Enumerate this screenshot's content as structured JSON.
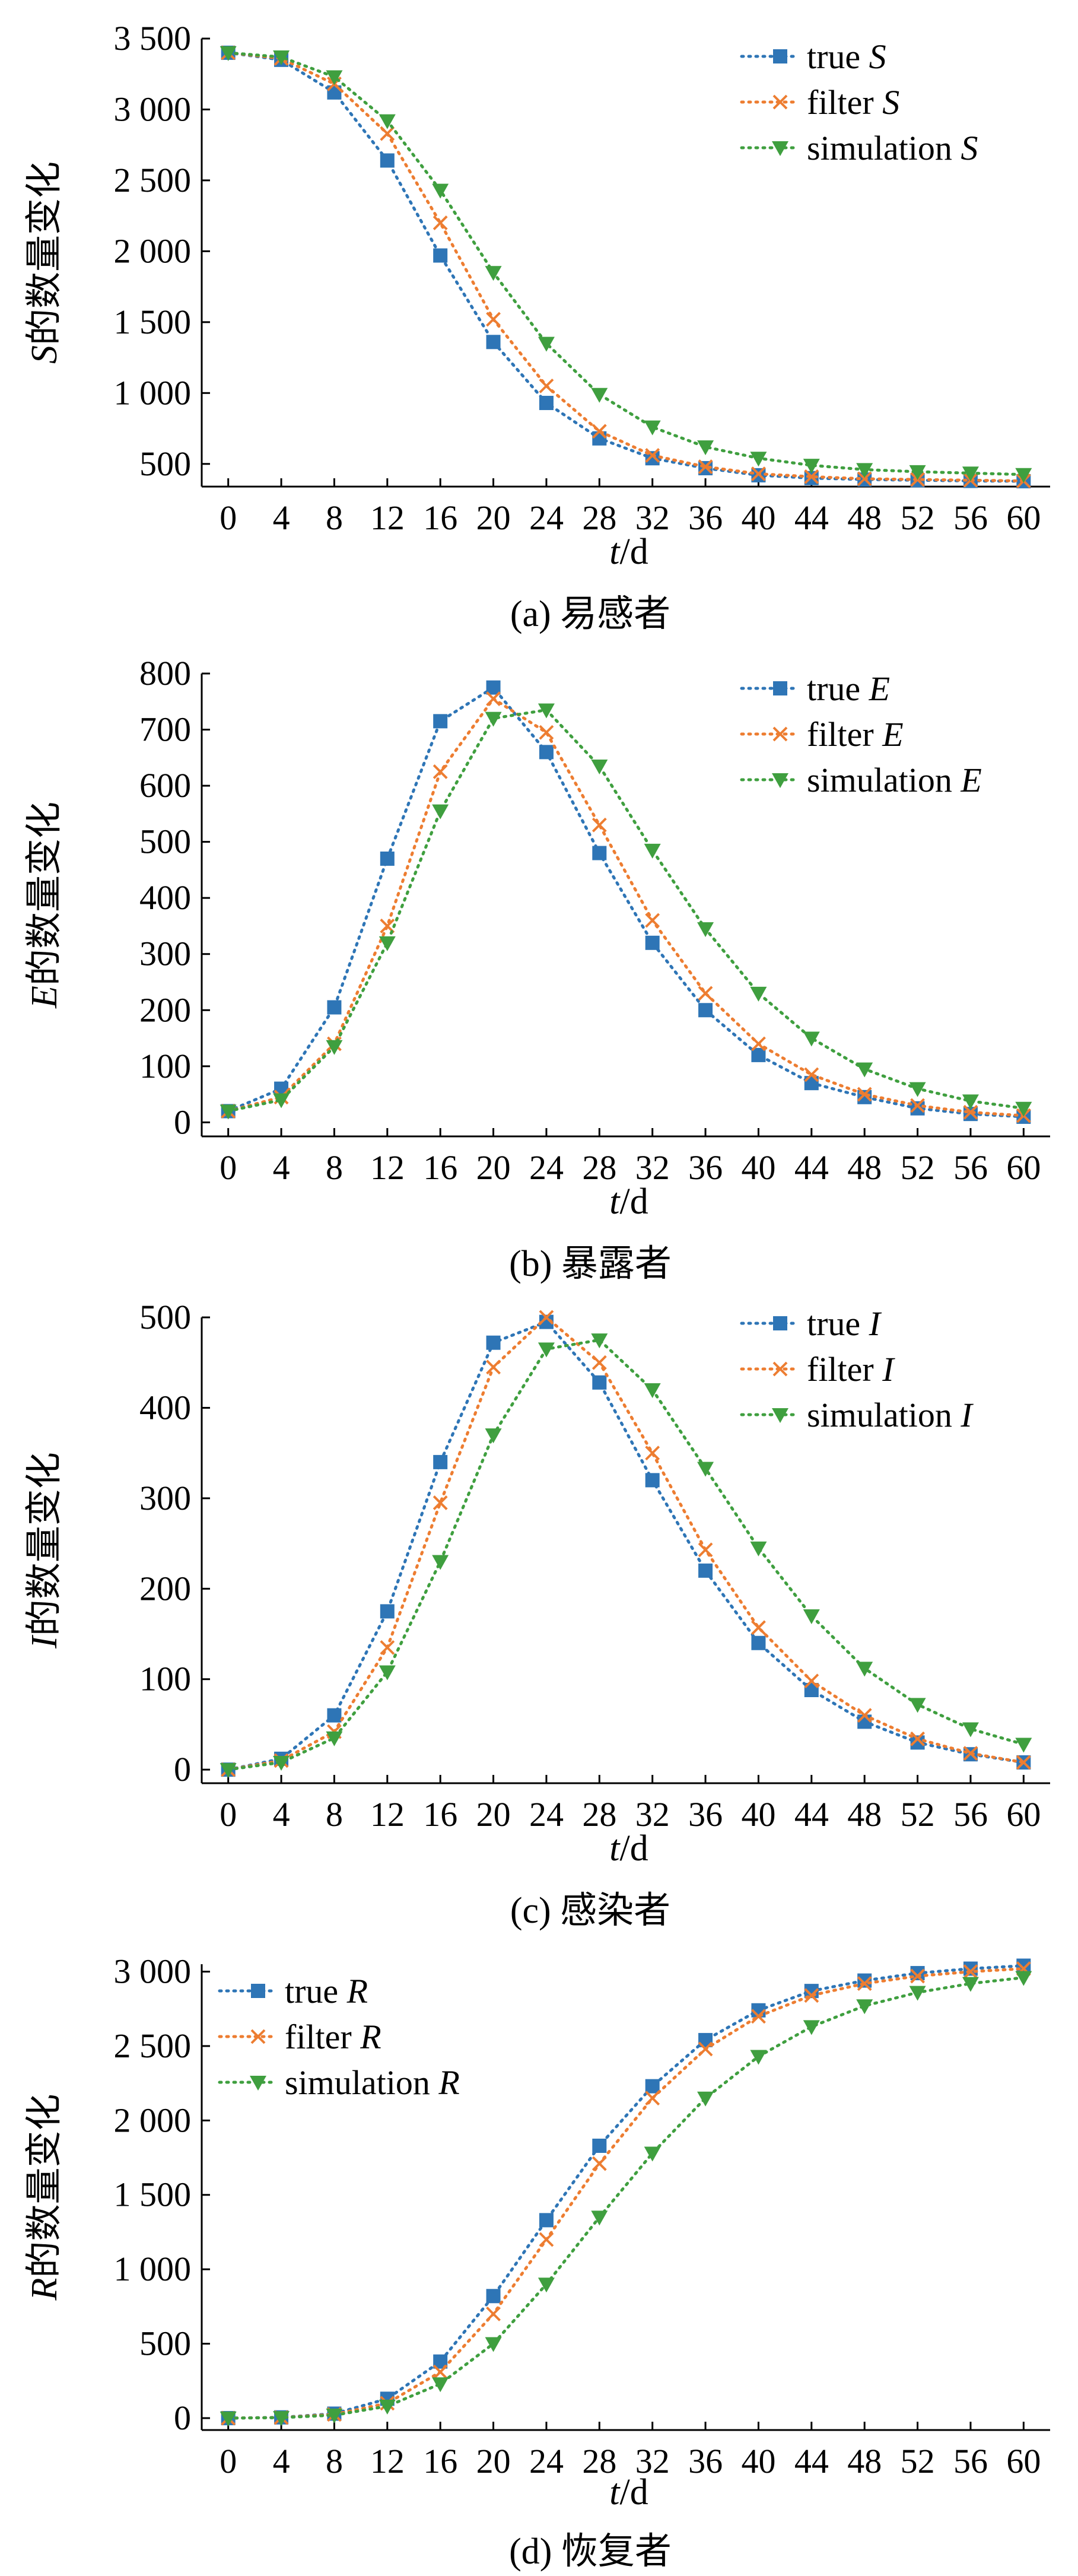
{
  "chart_data": [
    {
      "type": "line",
      "caption": "(a) 易感者",
      "ylabel_var": "S",
      "ylabel_suffix": "的数量变化",
      "xlabel_var": "t",
      "xlabel_unit": "/d",
      "x": [
        0,
        4,
        8,
        12,
        16,
        20,
        24,
        28,
        32,
        36,
        40,
        44,
        48,
        52,
        56,
        60
      ],
      "xlim": [
        -2,
        62
      ],
      "ylim": [
        340,
        3500
      ],
      "yticks": [
        500,
        1000,
        1500,
        2000,
        2500,
        3000,
        3500
      ],
      "ytick_labels": [
        "500",
        "1 000",
        "1 500",
        "2 000",
        "2 500",
        "3 000",
        "3 500"
      ],
      "legend_position": "top-right",
      "series": [
        {
          "name": "true",
          "var": "S",
          "marker": "square",
          "color": "#2e75b6",
          "values": [
            3400,
            3350,
            3120,
            2640,
            1970,
            1360,
            930,
            680,
            540,
            470,
            420,
            400,
            390,
            385,
            380,
            378
          ]
        },
        {
          "name": "filter",
          "var": "S",
          "marker": "x",
          "color": "#ed7d31",
          "values": [
            3400,
            3360,
            3180,
            2830,
            2200,
            1520,
            1050,
            730,
            560,
            480,
            430,
            410,
            395,
            390,
            385,
            380
          ]
        },
        {
          "name": "simulation",
          "var": "S",
          "marker": "triangle-down",
          "color": "#3f9f3f",
          "values": [
            3400,
            3370,
            3230,
            2920,
            2430,
            1850,
            1350,
            990,
            760,
            620,
            540,
            490,
            460,
            445,
            435,
            425
          ]
        }
      ]
    },
    {
      "type": "line",
      "caption": "(b) 暴露者",
      "ylabel_var": "E",
      "ylabel_suffix": "的数量变化",
      "xlabel_var": "t",
      "xlabel_unit": "/d",
      "x": [
        0,
        4,
        8,
        12,
        16,
        20,
        24,
        28,
        32,
        36,
        40,
        44,
        48,
        52,
        56,
        60
      ],
      "xlim": [
        -2,
        62
      ],
      "ylim": [
        -25,
        800
      ],
      "yticks": [
        0,
        100,
        200,
        300,
        400,
        500,
        600,
        700,
        800
      ],
      "ytick_labels": [
        "0",
        "100",
        "200",
        "300",
        "400",
        "500",
        "600",
        "700",
        "800"
      ],
      "legend_position": "top-right",
      "series": [
        {
          "name": "true",
          "var": "E",
          "marker": "square",
          "color": "#2e75b6",
          "values": [
            20,
            60,
            205,
            470,
            715,
            775,
            660,
            480,
            320,
            200,
            120,
            70,
            45,
            25,
            15,
            10
          ]
        },
        {
          "name": "filter",
          "var": "E",
          "marker": "x",
          "color": "#ed7d31",
          "values": [
            20,
            45,
            140,
            350,
            625,
            755,
            695,
            530,
            360,
            230,
            140,
            85,
            50,
            30,
            18,
            12
          ]
        },
        {
          "name": "simulation",
          "var": "E",
          "marker": "triangle-down",
          "color": "#3f9f3f",
          "values": [
            20,
            40,
            135,
            320,
            555,
            720,
            735,
            635,
            485,
            345,
            230,
            150,
            95,
            60,
            38,
            25
          ]
        }
      ]
    },
    {
      "type": "line",
      "caption": "(c) 感染者",
      "ylabel_var": "I",
      "ylabel_suffix": "的数量变化",
      "xlabel_var": "t",
      "xlabel_unit": "/d",
      "x": [
        0,
        4,
        8,
        12,
        16,
        20,
        24,
        28,
        32,
        36,
        40,
        44,
        48,
        52,
        56,
        60
      ],
      "xlim": [
        -2,
        62
      ],
      "ylim": [
        -15,
        500
      ],
      "yticks": [
        0,
        100,
        200,
        300,
        400,
        500
      ],
      "ytick_labels": [
        "0",
        "100",
        "200",
        "300",
        "400",
        "500"
      ],
      "legend_position": "top-right",
      "series": [
        {
          "name": "true",
          "var": "I",
          "marker": "square",
          "color": "#2e75b6",
          "values": [
            0,
            12,
            60,
            175,
            340,
            472,
            495,
            428,
            320,
            220,
            140,
            88,
            53,
            30,
            17,
            8
          ]
        },
        {
          "name": "filter",
          "var": "I",
          "marker": "x",
          "color": "#ed7d31",
          "values": [
            0,
            10,
            42,
            135,
            295,
            445,
            500,
            450,
            350,
            243,
            157,
            98,
            60,
            34,
            18,
            8
          ]
        },
        {
          "name": "simulation",
          "var": "I",
          "marker": "triangle-down",
          "color": "#3f9f3f",
          "values": [
            0,
            8,
            35,
            108,
            230,
            370,
            465,
            475,
            420,
            333,
            245,
            170,
            112,
            72,
            45,
            28
          ]
        }
      ]
    },
    {
      "type": "line",
      "caption": "(d) 恢复者",
      "ylabel_var": "R",
      "ylabel_suffix": "的数量变化",
      "xlabel_var": "t",
      "xlabel_unit": "/d",
      "x": [
        0,
        4,
        8,
        12,
        16,
        20,
        24,
        28,
        32,
        36,
        40,
        44,
        48,
        52,
        56,
        60
      ],
      "xlim": [
        -2,
        62
      ],
      "ylim": [
        -80,
        3050
      ],
      "yticks": [
        0,
        500,
        1000,
        1500,
        2000,
        2500,
        3000
      ],
      "ytick_labels": [
        "0",
        "500",
        "1 000",
        "1 500",
        "2 000",
        "2 500",
        "3 000"
      ],
      "legend_position": "top-left",
      "series": [
        {
          "name": "true",
          "var": "R",
          "marker": "square",
          "color": "#2e75b6",
          "values": [
            0,
            5,
            30,
            130,
            380,
            820,
            1330,
            1830,
            2230,
            2540,
            2740,
            2870,
            2940,
            2990,
            3020,
            3040
          ]
        },
        {
          "name": "filter",
          "var": "R",
          "marker": "x",
          "color": "#ed7d31",
          "values": [
            0,
            4,
            25,
            100,
            310,
            700,
            1200,
            1710,
            2150,
            2480,
            2700,
            2840,
            2920,
            2970,
            3000,
            3020
          ]
        },
        {
          "name": "simulation",
          "var": "R",
          "marker": "triangle-down",
          "color": "#3f9f3f",
          "values": [
            0,
            3,
            20,
            80,
            230,
            500,
            900,
            1350,
            1780,
            2150,
            2430,
            2630,
            2770,
            2860,
            2920,
            2960
          ]
        }
      ]
    }
  ]
}
